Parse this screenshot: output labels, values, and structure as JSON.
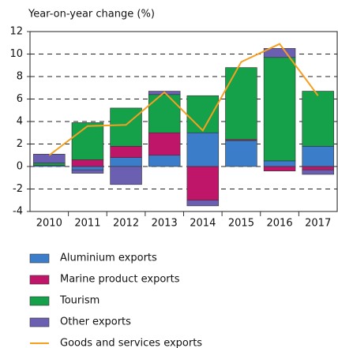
{
  "chart_data": {
    "type": "bar",
    "stacked": true,
    "y_axis_label": "Year-on-year change (%)",
    "categories": [
      "2010",
      "2011",
      "2012",
      "2013",
      "2014",
      "2015",
      "2016",
      "2017"
    ],
    "series": [
      {
        "name": "Aluminium exports",
        "color": "#3b7dc8",
        "values": [
          0.1,
          -0.3,
          0.8,
          1.0,
          3.0,
          2.3,
          0.5,
          1.8
        ]
      },
      {
        "name": "Marine product exports",
        "color": "#c0166a",
        "values": [
          0,
          0.6,
          1.0,
          2.0,
          -3.0,
          0.1,
          -0.4,
          -0.3
        ]
      },
      {
        "name": "Tourism",
        "color": "#15a04a",
        "values": [
          0.2,
          3.3,
          3.4,
          3.4,
          3.3,
          6.4,
          9.2,
          4.9
        ]
      },
      {
        "name": "Other exports",
        "color": "#6a5fb0",
        "values": [
          0.8,
          -0.3,
          -1.6,
          0.3,
          -0.5,
          0,
          0.8,
          -0.4
        ]
      },
      {
        "name": "Goods and services exports",
        "color": "#f5a020",
        "type": "line",
        "values": [
          1.0,
          3.6,
          3.7,
          6.6,
          3.2,
          9.3,
          10.9,
          6.3
        ]
      }
    ],
    "ylim": [
      -4,
      12
    ],
    "yticks": [
      12,
      10,
      8,
      6,
      4,
      2,
      0,
      -2,
      -4
    ],
    "grid": true,
    "legend": "bottom"
  }
}
